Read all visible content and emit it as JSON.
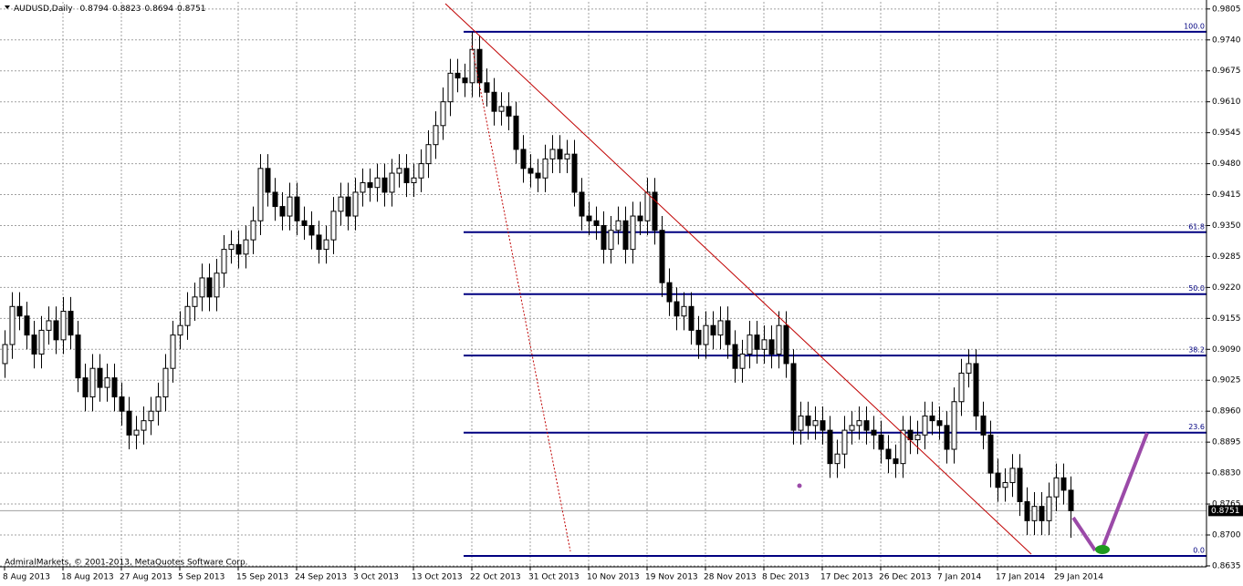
{
  "chart_data": {
    "type": "candlestick",
    "title": "AUDUSD,Daily",
    "watermark": "AdmiralMarkets, © 2001-2013, MetaQuotes Software Corp.",
    "categories": [
      "8 Aug 2013",
      null,
      null,
      null,
      null,
      null,
      null,
      null,
      "18 Aug 2013",
      null,
      null,
      null,
      null,
      null,
      null,
      null,
      "27 Aug 2013",
      null,
      null,
      null,
      null,
      null,
      null,
      null,
      "5 Sep 2013",
      null,
      null,
      null,
      null,
      null,
      null,
      null,
      "15 Sep 2013",
      null,
      null,
      null,
      null,
      null,
      null,
      null,
      "24 Sep 2013",
      null,
      null,
      null,
      null,
      null,
      null,
      null,
      "3 Oct 2013",
      null,
      null,
      null,
      null,
      null,
      null,
      null,
      "13 Oct 2013",
      null,
      null,
      null,
      null,
      null,
      null,
      null,
      "22 Oct 2013",
      null,
      null,
      null,
      null,
      null,
      null,
      null,
      "31 Oct 2013",
      null,
      null,
      null,
      null,
      null,
      null,
      null,
      "10 Nov 2013",
      null,
      null,
      null,
      null,
      null,
      null,
      null,
      "19 Nov 2013",
      null,
      null,
      null,
      null,
      null,
      null,
      null,
      "28 Nov 2013",
      null,
      null,
      null,
      null,
      null,
      null,
      null,
      "8 Dec 2013",
      null,
      null,
      null,
      null,
      null,
      null,
      null,
      "17 Dec 2013",
      null,
      null,
      null,
      null,
      null,
      null,
      null,
      "26 Dec 2013",
      null,
      null,
      null,
      null,
      null,
      null,
      null,
      "7 Jan 2014",
      null,
      null,
      null,
      null,
      null,
      null,
      null,
      "17 Jan 2014",
      null,
      null,
      null,
      null,
      null,
      null,
      null,
      "29 Jan 2014",
      null,
      null
    ],
    "open": [
      0.906,
      0.91,
      0.918,
      0.916,
      0.912,
      0.908,
      0.913,
      0.915,
      0.911,
      0.917,
      0.912,
      0.903,
      0.899,
      0.905,
      0.901,
      0.903,
      0.899,
      0.896,
      0.891,
      0.892,
      0.894,
      0.896,
      0.899,
      0.905,
      0.912,
      0.914,
      0.918,
      0.92,
      0.924,
      0.92,
      0.925,
      0.93,
      0.931,
      0.929,
      0.932,
      0.936,
      0.947,
      0.942,
      0.939,
      0.937,
      0.941,
      0.936,
      0.935,
      0.933,
      0.93,
      0.932,
      0.938,
      0.941,
      0.937,
      0.942,
      0.944,
      0.943,
      0.945,
      0.942,
      0.946,
      0.947,
      0.944,
      0.945,
      0.948,
      0.952,
      0.956,
      0.961,
      0.967,
      0.966,
      0.965,
      0.972,
      0.965,
      0.963,
      0.959,
      0.96,
      0.958,
      0.951,
      0.947,
      0.946,
      0.945,
      0.949,
      0.951,
      0.949,
      0.95,
      0.942,
      0.937,
      0.936,
      0.935,
      0.93,
      0.934,
      0.936,
      0.93,
      0.937,
      0.936,
      0.942,
      0.934,
      0.923,
      0.919,
      0.916,
      0.918,
      0.913,
      0.91,
      0.914,
      0.912,
      0.915,
      0.91,
      0.905,
      0.908,
      0.912,
      0.909,
      0.911,
      0.908,
      0.914,
      0.906,
      0.892,
      0.895,
      0.893,
      0.894,
      0.892,
      0.885,
      0.887,
      0.892,
      0.893,
      0.894,
      0.892,
      0.891,
      0.888,
      0.886,
      0.885,
      0.892,
      0.89,
      0.891,
      0.895,
      0.894,
      0.893,
      0.888,
      0.898,
      0.904,
      0.906,
      0.895,
      0.891,
      0.883,
      0.88,
      0.881,
      0.884,
      0.877,
      0.873,
      0.876,
      0.873,
      0.878,
      0.882,
      0.8794
    ],
    "high": [
      0.913,
      0.921,
      0.921,
      0.919,
      0.915,
      0.916,
      0.918,
      0.918,
      0.92,
      0.92,
      0.915,
      0.906,
      0.908,
      0.908,
      0.906,
      0.906,
      0.902,
      0.899,
      0.895,
      0.897,
      0.899,
      0.902,
      0.908,
      0.915,
      0.917,
      0.921,
      0.923,
      0.927,
      0.927,
      0.928,
      0.933,
      0.934,
      0.934,
      0.935,
      0.939,
      0.95,
      0.95,
      0.945,
      0.942,
      0.944,
      0.944,
      0.939,
      0.938,
      0.936,
      0.935,
      0.941,
      0.944,
      0.944,
      0.945,
      0.947,
      0.947,
      0.948,
      0.948,
      0.949,
      0.95,
      0.95,
      0.948,
      0.951,
      0.955,
      0.959,
      0.964,
      0.97,
      0.97,
      0.969,
      0.9757,
      0.975,
      0.968,
      0.966,
      0.963,
      0.963,
      0.961,
      0.954,
      0.95,
      0.949,
      0.952,
      0.954,
      0.954,
      0.953,
      0.953,
      0.945,
      0.94,
      0.939,
      0.938,
      0.937,
      0.939,
      0.939,
      0.94,
      0.94,
      0.945,
      0.945,
      0.937,
      0.926,
      0.922,
      0.921,
      0.921,
      0.916,
      0.917,
      0.917,
      0.918,
      0.918,
      0.913,
      0.911,
      0.915,
      0.915,
      0.914,
      0.914,
      0.917,
      0.917,
      0.909,
      0.898,
      0.898,
      0.897,
      0.897,
      0.895,
      0.89,
      0.895,
      0.896,
      0.897,
      0.897,
      0.895,
      0.894,
      0.891,
      0.889,
      0.895,
      0.895,
      0.894,
      0.898,
      0.898,
      0.897,
      0.896,
      0.901,
      0.907,
      0.909,
      0.909,
      0.898,
      0.894,
      0.886,
      0.884,
      0.887,
      0.887,
      0.88,
      0.879,
      0.879,
      0.881,
      0.885,
      0.885,
      0.8823
    ],
    "low": [
      0.903,
      0.907,
      0.913,
      0.909,
      0.905,
      0.905,
      0.91,
      0.908,
      0.908,
      0.909,
      0.9,
      0.896,
      0.896,
      0.898,
      0.898,
      0.896,
      0.893,
      0.888,
      0.888,
      0.889,
      0.891,
      0.893,
      0.896,
      0.902,
      0.909,
      0.911,
      0.915,
      0.917,
      0.917,
      0.917,
      0.922,
      0.927,
      0.926,
      0.926,
      0.929,
      0.933,
      0.939,
      0.936,
      0.934,
      0.934,
      0.933,
      0.932,
      0.93,
      0.927,
      0.927,
      0.929,
      0.935,
      0.934,
      0.934,
      0.939,
      0.94,
      0.94,
      0.939,
      0.939,
      0.943,
      0.941,
      0.941,
      0.942,
      0.945,
      0.949,
      0.953,
      0.958,
      0.963,
      0.962,
      0.962,
      0.962,
      0.96,
      0.956,
      0.956,
      0.955,
      0.948,
      0.944,
      0.943,
      0.942,
      0.942,
      0.946,
      0.946,
      0.946,
      0.939,
      0.934,
      0.933,
      0.932,
      0.927,
      0.927,
      0.931,
      0.927,
      0.927,
      0.933,
      0.933,
      0.931,
      0.92,
      0.916,
      0.913,
      0.913,
      0.91,
      0.907,
      0.907,
      0.909,
      0.909,
      0.907,
      0.902,
      0.902,
      0.905,
      0.906,
      0.906,
      0.905,
      0.905,
      0.903,
      0.889,
      0.889,
      0.89,
      0.89,
      0.889,
      0.882,
      0.882,
      0.884,
      0.889,
      0.89,
      0.889,
      0.888,
      0.885,
      0.883,
      0.882,
      0.882,
      0.887,
      0.887,
      0.888,
      0.891,
      0.89,
      0.885,
      0.885,
      0.895,
      0.901,
      0.892,
      0.888,
      0.88,
      0.877,
      0.877,
      0.878,
      0.874,
      0.87,
      0.87,
      0.87,
      0.87,
      0.875,
      0.8764,
      0.8694
    ],
    "close": [
      0.91,
      0.918,
      0.916,
      0.912,
      0.908,
      0.913,
      0.915,
      0.911,
      0.917,
      0.912,
      0.903,
      0.899,
      0.905,
      0.901,
      0.903,
      0.899,
      0.896,
      0.891,
      0.892,
      0.894,
      0.896,
      0.899,
      0.905,
      0.912,
      0.914,
      0.918,
      0.92,
      0.924,
      0.92,
      0.925,
      0.93,
      0.931,
      0.929,
      0.932,
      0.936,
      0.947,
      0.942,
      0.939,
      0.937,
      0.941,
      0.936,
      0.935,
      0.933,
      0.93,
      0.932,
      0.938,
      0.941,
      0.937,
      0.942,
      0.944,
      0.943,
      0.945,
      0.942,
      0.946,
      0.947,
      0.944,
      0.945,
      0.948,
      0.952,
      0.956,
      0.961,
      0.967,
      0.966,
      0.965,
      0.972,
      0.965,
      0.963,
      0.959,
      0.96,
      0.958,
      0.951,
      0.947,
      0.946,
      0.945,
      0.949,
      0.951,
      0.949,
      0.95,
      0.942,
      0.937,
      0.936,
      0.935,
      0.93,
      0.934,
      0.936,
      0.93,
      0.937,
      0.936,
      0.942,
      0.934,
      0.923,
      0.919,
      0.916,
      0.918,
      0.913,
      0.91,
      0.914,
      0.912,
      0.915,
      0.91,
      0.905,
      0.908,
      0.912,
      0.909,
      0.911,
      0.908,
      0.914,
      0.906,
      0.892,
      0.895,
      0.893,
      0.894,
      0.892,
      0.885,
      0.887,
      0.892,
      0.893,
      0.894,
      0.892,
      0.891,
      0.888,
      0.886,
      0.885,
      0.892,
      0.89,
      0.891,
      0.895,
      0.894,
      0.893,
      0.888,
      0.898,
      0.904,
      0.906,
      0.895,
      0.891,
      0.883,
      0.88,
      0.881,
      0.884,
      0.877,
      0.873,
      0.876,
      0.873,
      0.878,
      0.882,
      0.8794,
      0.8751
    ],
    "ylim": [
      0.8633,
      0.982
    ],
    "yticks": [
      0.9805,
      {
        "value": 0.974,
        "label": "0.9740"
      },
      0.9675,
      {
        "value": 0.961,
        "label": "0.9610"
      },
      0.9545,
      {
        "value": 0.948,
        "label": "0.9480"
      },
      0.9415,
      {
        "value": 0.935,
        "label": "0.9350"
      },
      0.9285,
      {
        "value": 0.922,
        "label": "0.9220"
      },
      0.9155,
      {
        "value": 0.909,
        "label": "0.9090"
      },
      0.9025,
      {
        "value": 0.896,
        "label": "0.8960"
      },
      0.8895,
      {
        "value": 0.883,
        "label": "0.8830"
      },
      0.8765,
      {
        "value": 0.87,
        "label": "0.8700"
      },
      0.8635
    ],
    "fib_levels": [
      {
        "label": "100.0",
        "price": 0.9757
      },
      {
        "label": "61.8",
        "price": 0.9336
      },
      {
        "label": "50.0",
        "price": 0.9206
      },
      {
        "label": "38.2",
        "price": 0.9077
      },
      {
        "label": "23.6",
        "price": 0.8915
      },
      {
        "label": "0.0",
        "price": 0.8656
      }
    ],
    "grid": true,
    "up_color": "#ffffff",
    "down_color": "#000000",
    "fib_color": "#000080"
  }
}
